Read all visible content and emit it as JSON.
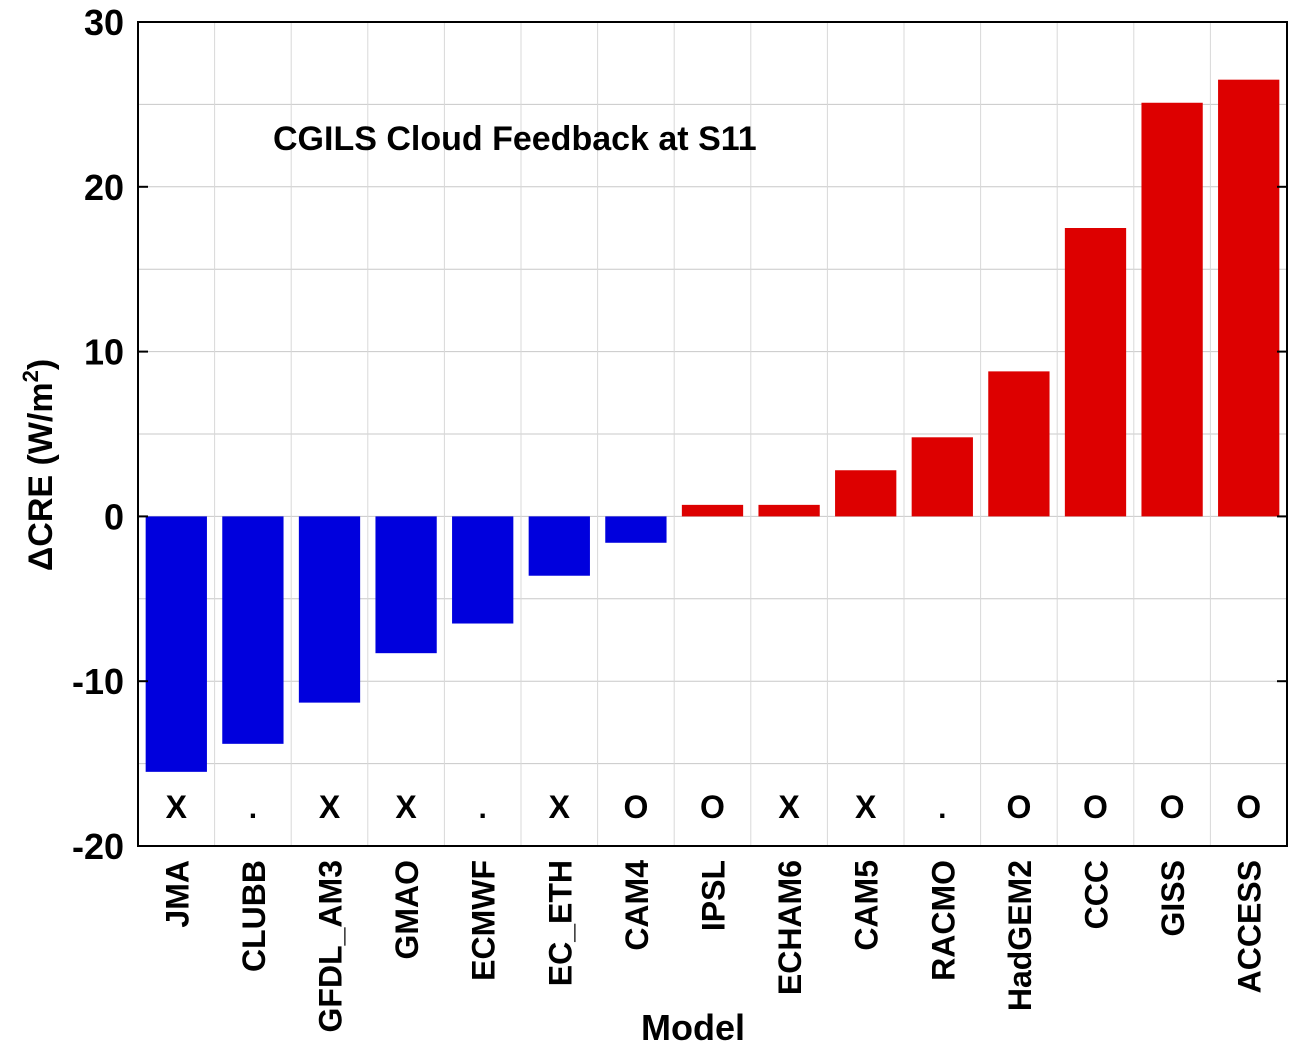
{
  "chart_data": {
    "type": "bar",
    "title": "CGILS Cloud Feedback at S11",
    "xlabel": "Model",
    "ylabel_main": "ΔCRE (W/m",
    "ylabel_sup": "2",
    "ylabel_close": ")",
    "ylim": [
      -20,
      30
    ],
    "yticks": [
      30,
      20,
      10,
      0,
      -10,
      -20
    ],
    "grid": true,
    "categories": [
      "JMA",
      "CLUBB",
      "GFDL_AM3",
      "GMAO",
      "ECMWF",
      "EC_ETH",
      "CAM4",
      "IPSL",
      "ECHAM6",
      "CAM5",
      "RACMO",
      "HadGEM2",
      "CCC",
      "GISS",
      "ACCESS"
    ],
    "values": [
      -15.5,
      -13.8,
      -11.3,
      -8.3,
      -6.5,
      -3.6,
      -1.6,
      0.7,
      0.7,
      2.8,
      4.8,
      8.8,
      17.5,
      25.1,
      26.5
    ],
    "markers": [
      "X",
      ".",
      "X",
      "X",
      ".",
      "X",
      "O",
      "O",
      "X",
      "X",
      ".",
      "O",
      "O",
      "O",
      "O"
    ],
    "colors": {
      "negative": "#0000dd",
      "positive": "#dd0000"
    }
  }
}
